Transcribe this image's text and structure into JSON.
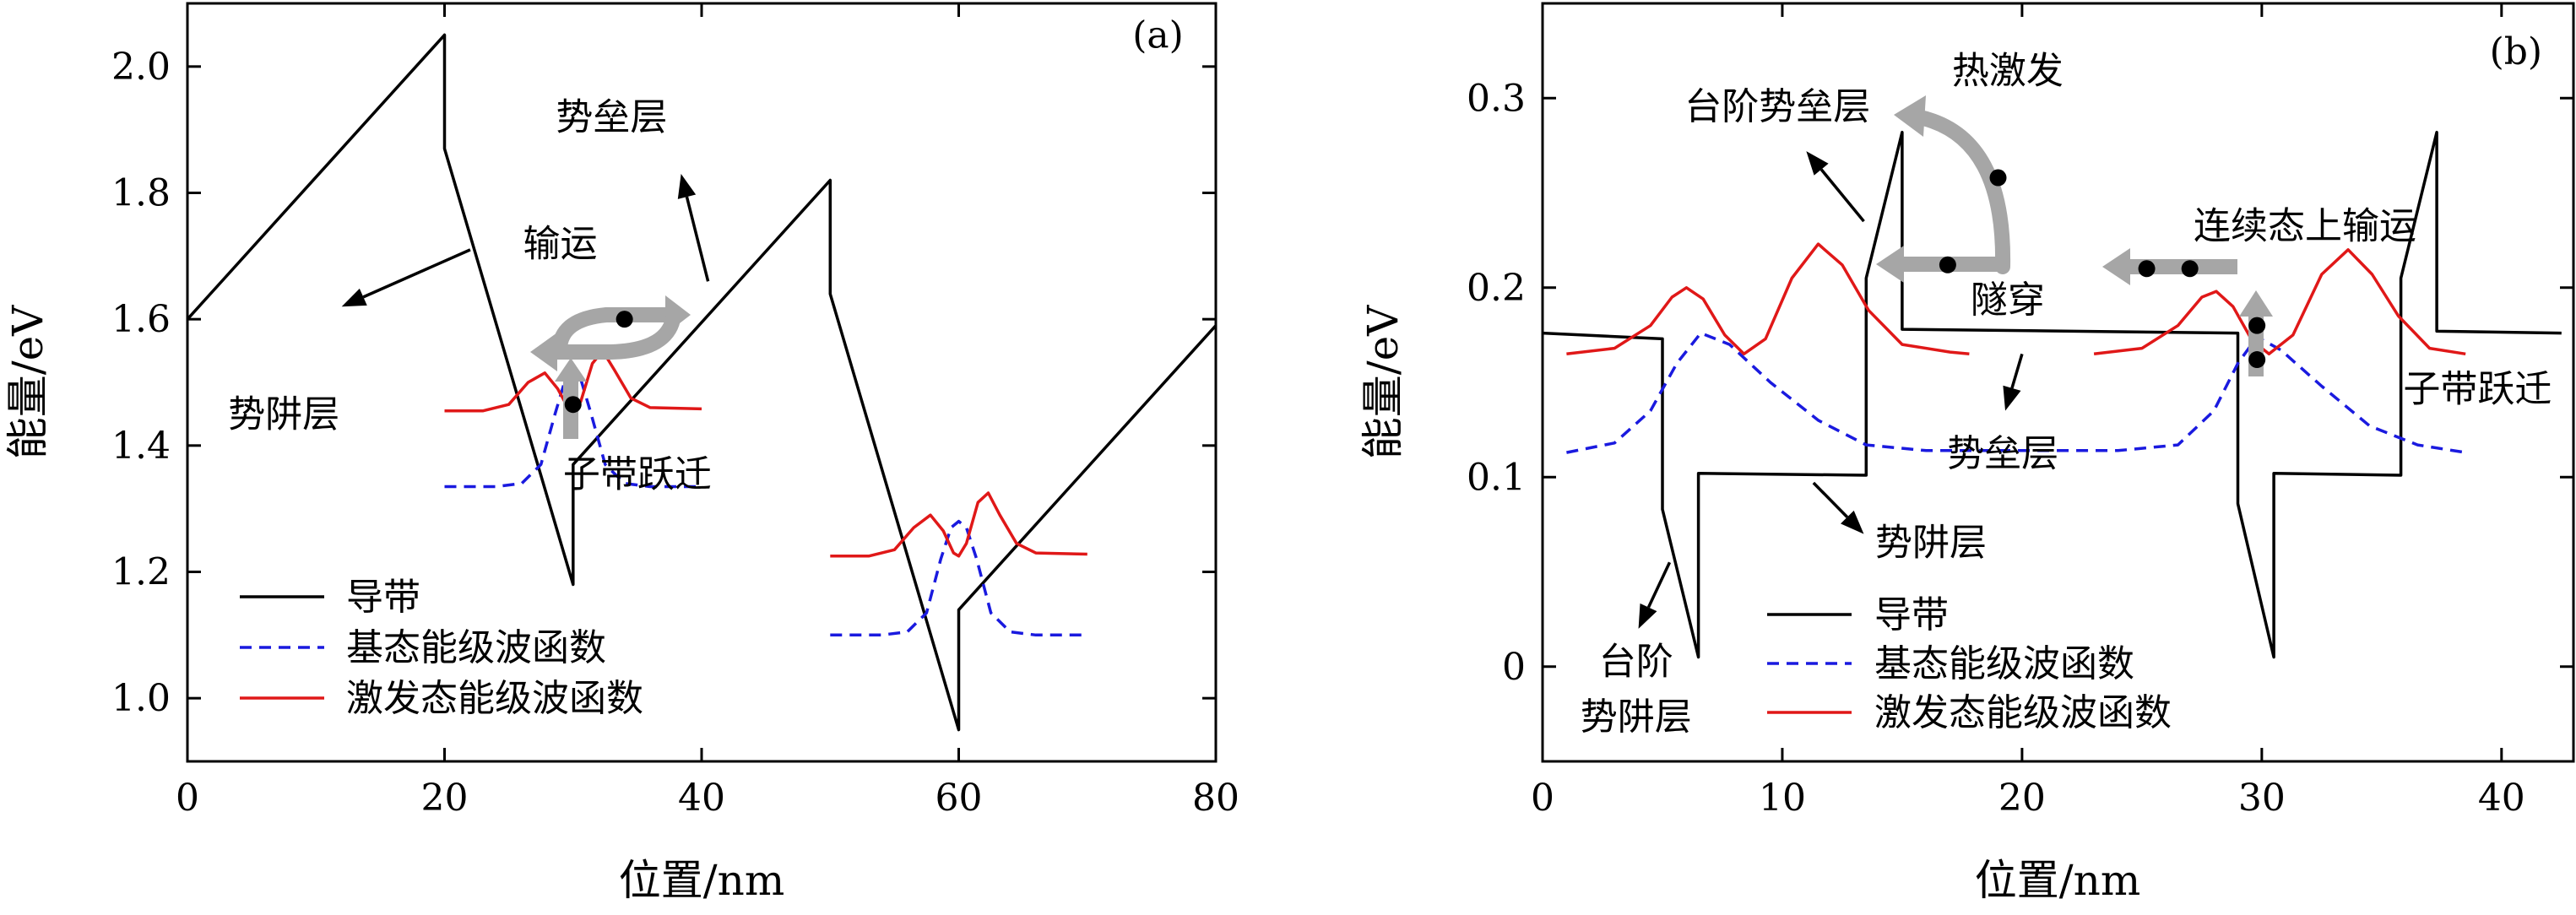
{
  "colors": {
    "band": "#000000",
    "ground": "#1a1adf",
    "excited": "#e01818",
    "arrow_gray": "#a6a6a6",
    "dot": "#000000"
  },
  "chart_data": [
    {
      "type": "line",
      "panel_label": "(a)",
      "xlabel": "位置/nm",
      "ylabel": "能量/eV",
      "xlim": [
        0,
        80
      ],
      "ylim": [
        0.9,
        2.1
      ],
      "xticks": [
        0,
        20,
        40,
        60,
        80
      ],
      "yticks": [
        1.0,
        1.2,
        1.4,
        1.6,
        1.8,
        2.0
      ],
      "ytick_labels": [
        "1.0",
        "1.2",
        "1.4",
        "1.6",
        "1.8",
        "2.0"
      ],
      "series": [
        {
          "name": "导带",
          "style": "solid",
          "color_key": "band",
          "segments": [
            [
              [
                0,
                1.6
              ],
              [
                20,
                2.05
              ],
              [
                20,
                1.87
              ],
              [
                30,
                1.18
              ],
              [
                30,
                1.37
              ],
              [
                50,
                1.82
              ],
              [
                50,
                1.64
              ],
              [
                60,
                0.95
              ],
              [
                60,
                1.14
              ],
              [
                80,
                1.59
              ]
            ]
          ]
        },
        {
          "name": "基态能级波函数",
          "style": "dashed",
          "color_key": "ground",
          "segments": [
            [
              [
                20,
                1.335
              ],
              [
                24,
                1.335
              ],
              [
                26,
                1.34
              ],
              [
                27.5,
                1.37
              ],
              [
                28.6,
                1.45
              ],
              [
                29.4,
                1.505
              ],
              [
                30,
                1.515
              ],
              [
                30.6,
                1.505
              ],
              [
                31.4,
                1.45
              ],
              [
                32.5,
                1.37
              ],
              [
                34,
                1.34
              ],
              [
                36,
                1.335
              ],
              [
                40,
                1.335
              ]
            ],
            [
              [
                50,
                1.1
              ],
              [
                54,
                1.1
              ],
              [
                56,
                1.105
              ],
              [
                57.5,
                1.135
              ],
              [
                58.6,
                1.22
              ],
              [
                59.4,
                1.27
              ],
              [
                60,
                1.28
              ],
              [
                60.6,
                1.27
              ],
              [
                61.4,
                1.22
              ],
              [
                62.5,
                1.135
              ],
              [
                64,
                1.105
              ],
              [
                66,
                1.1
              ],
              [
                70,
                1.1
              ]
            ]
          ]
        },
        {
          "name": "激发态能级波函数",
          "style": "solid",
          "color_key": "excited",
          "segments": [
            [
              [
                20,
                1.455
              ],
              [
                23,
                1.455
              ],
              [
                25,
                1.465
              ],
              [
                26.5,
                1.5
              ],
              [
                27.8,
                1.515
              ],
              [
                28.8,
                1.49
              ],
              [
                29.6,
                1.46
              ],
              [
                30,
                1.455
              ],
              [
                30.6,
                1.47
              ],
              [
                31.5,
                1.53
              ],
              [
                32.3,
                1.55
              ],
              [
                33.2,
                1.52
              ],
              [
                34.5,
                1.475
              ],
              [
                36,
                1.46
              ],
              [
                40,
                1.458
              ]
            ],
            [
              [
                50,
                1.225
              ],
              [
                53,
                1.225
              ],
              [
                55,
                1.235
              ],
              [
                56.5,
                1.27
              ],
              [
                57.8,
                1.29
              ],
              [
                58.8,
                1.265
              ],
              [
                59.6,
                1.23
              ],
              [
                60,
                1.225
              ],
              [
                60.6,
                1.245
              ],
              [
                61.5,
                1.31
              ],
              [
                62.3,
                1.325
              ],
              [
                63.2,
                1.29
              ],
              [
                64.5,
                1.245
              ],
              [
                66,
                1.23
              ],
              [
                70,
                1.228
              ]
            ]
          ]
        }
      ],
      "annotations": [
        {
          "text": "(a)",
          "x": 75.5,
          "y": 2.03
        },
        {
          "text": "势垒层",
          "x": 33,
          "y": 1.9
        },
        {
          "text": "输运",
          "x": 29,
          "y": 1.7
        },
        {
          "text": "势阱层",
          "x": 7.5,
          "y": 1.43
        },
        {
          "text": "子带跃迁",
          "x": 35,
          "y": 1.335
        }
      ],
      "arrows": [
        {
          "from": [
            40.5,
            1.66
          ],
          "to": [
            38.4,
            1.83
          ]
        },
        {
          "from": [
            22,
            1.71
          ],
          "to": [
            12,
            1.62
          ]
        }
      ],
      "dots": [
        [
          34,
          1.6
        ],
        [
          30,
          1.465
        ]
      ],
      "legend": {
        "position": "lower-left",
        "entries": [
          "导带",
          "基态能级波函数",
          "激发态能级波函数"
        ]
      }
    },
    {
      "type": "line",
      "panel_label": "(b)",
      "xlabel": "位置/nm",
      "ylabel": "能量/eV",
      "xlim": [
        0,
        43
      ],
      "ylim": [
        -0.05,
        0.35
      ],
      "xticks": [
        0,
        10,
        20,
        30,
        40
      ],
      "yticks": [
        0,
        0.1,
        0.2,
        0.3
      ],
      "ytick_labels": [
        "0",
        "0.1",
        "0.2",
        "0.3"
      ],
      "series": [
        {
          "name": "导带",
          "style": "solid",
          "color_key": "band",
          "segments": [
            [
              [
                0,
                0.176
              ],
              [
                5,
                0.173
              ],
              [
                5,
                0.083
              ],
              [
                6.5,
                0.005
              ],
              [
                6.5,
                0.102
              ],
              [
                13.5,
                0.101
              ],
              [
                13.5,
                0.205
              ],
              [
                15,
                0.282
              ],
              [
                15,
                0.178
              ],
              [
                29,
                0.176
              ],
              [
                29,
                0.086
              ],
              [
                30.5,
                0.005
              ],
              [
                30.5,
                0.102
              ],
              [
                35.8,
                0.101
              ],
              [
                35.8,
                0.205
              ],
              [
                37.3,
                0.282
              ],
              [
                37.3,
                0.177
              ],
              [
                42.5,
                0.176
              ]
            ]
          ]
        },
        {
          "name": "基态能级波函数",
          "style": "dashed",
          "color_key": "ground",
          "segments": [
            [
              [
                1,
                0.113
              ],
              [
                3,
                0.118
              ],
              [
                4.5,
                0.135
              ],
              [
                5.6,
                0.16
              ],
              [
                6.6,
                0.176
              ],
              [
                7.8,
                0.17
              ],
              [
                9.5,
                0.15
              ],
              [
                11.5,
                0.13
              ],
              [
                13.5,
                0.117
              ],
              [
                16,
                0.114
              ],
              [
                24,
                0.114
              ],
              [
                26.5,
                0.117
              ],
              [
                28,
                0.135
              ],
              [
                29,
                0.16
              ],
              [
                29.8,
                0.174
              ],
              [
                30.8,
                0.167
              ],
              [
                32.5,
                0.148
              ],
              [
                34.5,
                0.127
              ],
              [
                36.5,
                0.117
              ],
              [
                38.5,
                0.113
              ]
            ]
          ]
        },
        {
          "name": "激发态能级波函数",
          "style": "solid",
          "color_key": "excited",
          "segments": [
            [
              [
                1,
                0.165
              ],
              [
                3,
                0.168
              ],
              [
                4.5,
                0.18
              ],
              [
                5.4,
                0.195
              ],
              [
                6,
                0.2
              ],
              [
                6.7,
                0.194
              ],
              [
                7.6,
                0.175
              ],
              [
                8.4,
                0.165
              ],
              [
                9.3,
                0.173
              ],
              [
                10.4,
                0.205
              ],
              [
                11.5,
                0.223
              ],
              [
                12.5,
                0.212
              ],
              [
                13.6,
                0.188
              ],
              [
                15,
                0.17
              ],
              [
                17,
                0.166
              ],
              [
                17.8,
                0.165
              ]
            ],
            [
              [
                23,
                0.165
              ],
              [
                25,
                0.168
              ],
              [
                26.5,
                0.18
              ],
              [
                27.5,
                0.195
              ],
              [
                28.1,
                0.198
              ],
              [
                28.8,
                0.19
              ],
              [
                29.6,
                0.172
              ],
              [
                30.3,
                0.165
              ],
              [
                31.3,
                0.175
              ],
              [
                32.5,
                0.207
              ],
              [
                33.6,
                0.22
              ],
              [
                34.6,
                0.207
              ],
              [
                35.7,
                0.185
              ],
              [
                37,
                0.168
              ],
              [
                38.5,
                0.165
              ]
            ]
          ]
        }
      ],
      "annotations": [
        {
          "text": "(b)",
          "x": 40.6,
          "y": 0.318
        },
        {
          "text": "热激发",
          "x": 19.4,
          "y": 0.308
        },
        {
          "text": "台阶势垒层",
          "x": 9.8,
          "y": 0.289
        },
        {
          "text": "连续态上输运",
          "x": 31.8,
          "y": 0.226
        },
        {
          "text": "隧穿",
          "x": 19.4,
          "y": 0.187
        },
        {
          "text": "子带跃迁",
          "x": 39,
          "y": 0.14
        },
        {
          "text": "势垒层",
          "x": 19.2,
          "y": 0.106
        },
        {
          "text": "势阱层",
          "x": 16.2,
          "y": 0.059
        },
        {
          "text": "台阶",
          "x": 3.9,
          "y": -0.004
        },
        {
          "text": "势阱层",
          "x": 3.9,
          "y": -0.033
        }
      ],
      "arrows": [
        {
          "from": [
            13.4,
            0.235
          ],
          "to": [
            11,
            0.272
          ]
        },
        {
          "from": [
            20,
            0.165
          ],
          "to": [
            19.3,
            0.135
          ]
        },
        {
          "from": [
            11.3,
            0.097
          ],
          "to": [
            13.4,
            0.07
          ]
        },
        {
          "from": [
            5.3,
            0.055
          ],
          "to": [
            4,
            0.02
          ]
        }
      ],
      "dots": [
        [
          19,
          0.258
        ],
        [
          16.9,
          0.212
        ],
        [
          25.2,
          0.21
        ],
        [
          27,
          0.21
        ],
        [
          29.8,
          0.18
        ],
        [
          29.8,
          0.162
        ]
      ],
      "legend": {
        "position": "lower-center",
        "entries": [
          "导带",
          "基态能级波函数",
          "激发态能级波函数"
        ]
      }
    }
  ]
}
